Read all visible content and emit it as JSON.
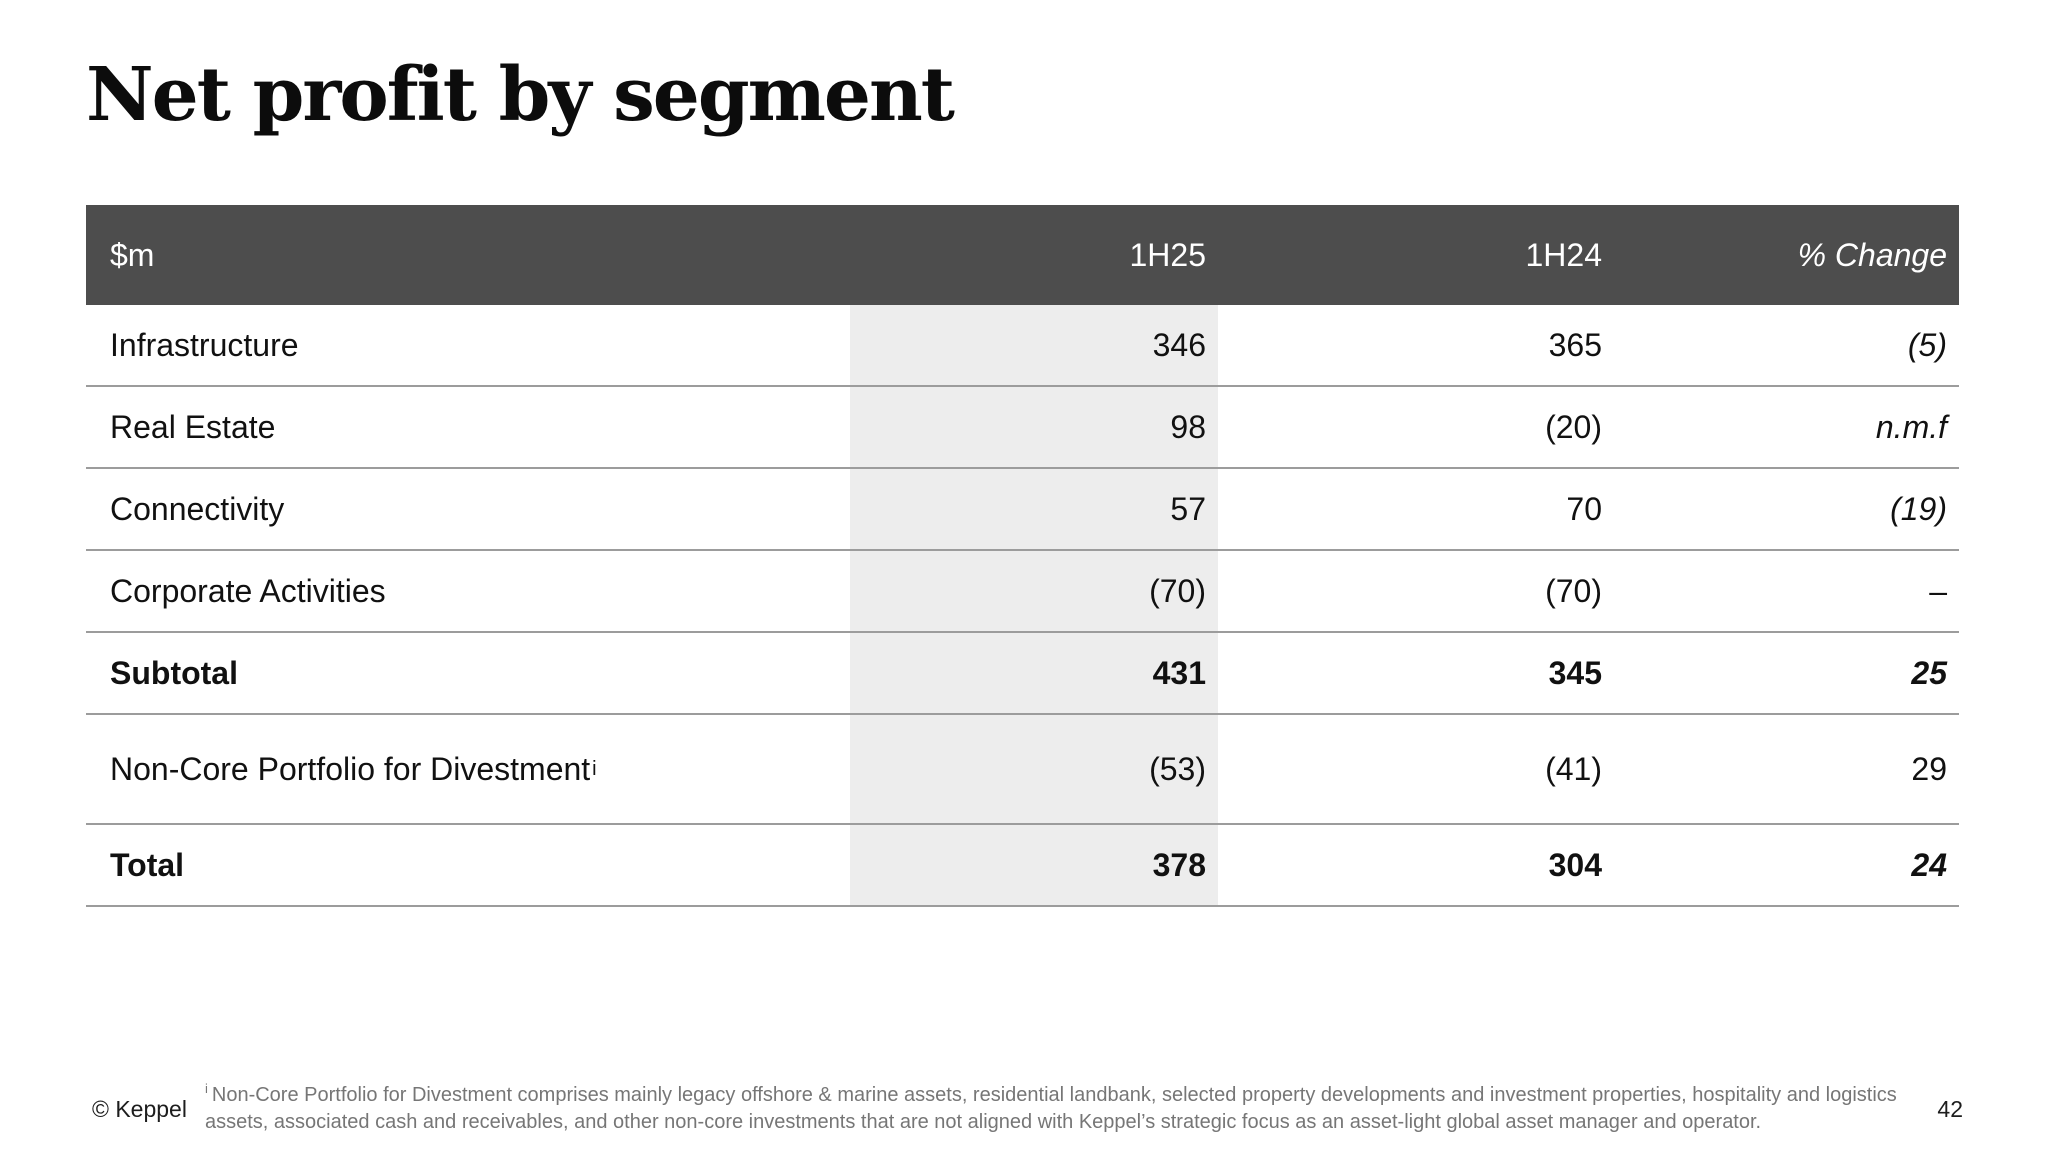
{
  "slide": {
    "title": "Net profit by segment",
    "page_number": "42",
    "copyright": "© Keppel"
  },
  "table": {
    "header": {
      "unit": "$m",
      "period_current": "1H25",
      "period_prior": "1H24",
      "change": "% Change"
    },
    "rows": [
      {
        "label": "Infrastructure",
        "sup": "",
        "v1": "346",
        "v2": "365",
        "chg": "(5)"
      },
      {
        "label": "Real Estate",
        "sup": "",
        "v1": "98",
        "v2": "(20)",
        "chg": "n.m.f"
      },
      {
        "label": "Connectivity",
        "sup": "",
        "v1": "57",
        "v2": "70",
        "chg": "(19)"
      },
      {
        "label": "Corporate Activities",
        "sup": "",
        "v1": "(70)",
        "v2": "(70)",
        "chg": "–"
      },
      {
        "label": "Subtotal",
        "sup": "",
        "v1": "431",
        "v2": "345",
        "chg": "25"
      },
      {
        "label": "Non-Core Portfolio for Divestment",
        "sup": "i",
        "v1": "(53)",
        "v2": "(41)",
        "chg": "29"
      },
      {
        "label": "Total",
        "sup": "",
        "v1": "378",
        "v2": "304",
        "chg": "24"
      }
    ]
  },
  "footnote": {
    "marker": "i",
    "line1": "Non-Core Portfolio for Divestment comprises mainly legacy offshore & marine assets, residential landbank, selected property developments and investment properties, hospitality and logistics",
    "line2": "assets, associated cash and receivables, and other non-core investments that are not aligned with Keppel’s strategic focus as an asset-light global asset manager and operator."
  },
  "colors": {
    "header_bg": "#4D4D4D",
    "highlight_band_bg": "#EDEDED",
    "row_divider": "#9C9C9C",
    "footnote_text": "#767676"
  }
}
